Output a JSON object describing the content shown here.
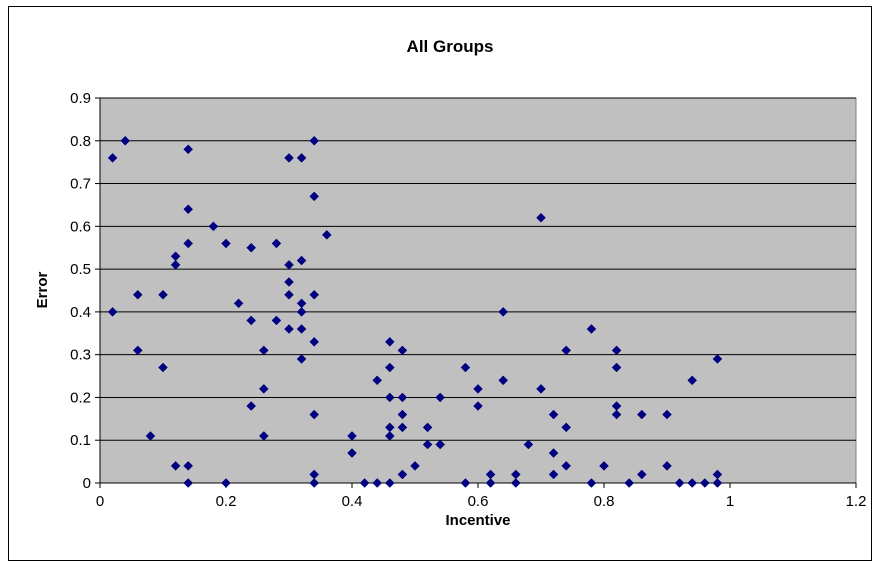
{
  "chart_data": {
    "type": "scatter",
    "title": "All Groups",
    "xlabel": "Incentive",
    "ylabel": "Error",
    "xlim": [
      0,
      1.2
    ],
    "ylim": [
      0,
      0.9
    ],
    "x_ticks": [
      "0",
      "0.2",
      "0.4",
      "0.6",
      "0.8",
      "1",
      "1.2"
    ],
    "y_ticks": [
      "0",
      "0.1",
      "0.2",
      "0.3",
      "0.4",
      "0.5",
      "0.6",
      "0.7",
      "0.8",
      "0.9"
    ],
    "grid": "horizontal",
    "legend": "none",
    "colors": {
      "marker": "#000080",
      "plot_area": "#c0c0c0",
      "gridline": "#000000"
    },
    "series": [
      {
        "points": [
          [
            0.02,
            0.76
          ],
          [
            0.04,
            0.8
          ],
          [
            0.02,
            0.4
          ],
          [
            0.06,
            0.44
          ],
          [
            0.06,
            0.31
          ],
          [
            0.08,
            0.11
          ],
          [
            0.1,
            0.44
          ],
          [
            0.1,
            0.27
          ],
          [
            0.12,
            0.53
          ],
          [
            0.12,
            0.51
          ],
          [
            0.12,
            0.04
          ],
          [
            0.14,
            0.78
          ],
          [
            0.14,
            0.64
          ],
          [
            0.14,
            0.56
          ],
          [
            0.14,
            0.04
          ],
          [
            0.14,
            0.0
          ],
          [
            0.18,
            0.6
          ],
          [
            0.2,
            0.56
          ],
          [
            0.2,
            0.0
          ],
          [
            0.22,
            0.42
          ],
          [
            0.24,
            0.55
          ],
          [
            0.24,
            0.38
          ],
          [
            0.24,
            0.18
          ],
          [
            0.26,
            0.31
          ],
          [
            0.26,
            0.22
          ],
          [
            0.26,
            0.11
          ],
          [
            0.28,
            0.56
          ],
          [
            0.28,
            0.38
          ],
          [
            0.3,
            0.76
          ],
          [
            0.3,
            0.51
          ],
          [
            0.3,
            0.47
          ],
          [
            0.3,
            0.44
          ],
          [
            0.3,
            0.36
          ],
          [
            0.32,
            0.76
          ],
          [
            0.32,
            0.52
          ],
          [
            0.32,
            0.42
          ],
          [
            0.32,
            0.4
          ],
          [
            0.32,
            0.36
          ],
          [
            0.32,
            0.29
          ],
          [
            0.34,
            0.8
          ],
          [
            0.34,
            0.67
          ],
          [
            0.34,
            0.44
          ],
          [
            0.34,
            0.33
          ],
          [
            0.34,
            0.16
          ],
          [
            0.34,
            0.02
          ],
          [
            0.34,
            0.0
          ],
          [
            0.36,
            0.58
          ],
          [
            0.4,
            0.11
          ],
          [
            0.4,
            0.07
          ],
          [
            0.42,
            0.0
          ],
          [
            0.44,
            0.24
          ],
          [
            0.44,
            0.0
          ],
          [
            0.46,
            0.33
          ],
          [
            0.46,
            0.27
          ],
          [
            0.46,
            0.2
          ],
          [
            0.46,
            0.13
          ],
          [
            0.46,
            0.11
          ],
          [
            0.46,
            0.0
          ],
          [
            0.48,
            0.31
          ],
          [
            0.48,
            0.2
          ],
          [
            0.48,
            0.16
          ],
          [
            0.48,
            0.13
          ],
          [
            0.48,
            0.02
          ],
          [
            0.5,
            0.04
          ],
          [
            0.52,
            0.13
          ],
          [
            0.52,
            0.09
          ],
          [
            0.54,
            0.2
          ],
          [
            0.54,
            0.09
          ],
          [
            0.58,
            0.27
          ],
          [
            0.58,
            0.0
          ],
          [
            0.6,
            0.22
          ],
          [
            0.6,
            0.18
          ],
          [
            0.62,
            0.02
          ],
          [
            0.62,
            0.0
          ],
          [
            0.64,
            0.4
          ],
          [
            0.64,
            0.24
          ],
          [
            0.66,
            0.02
          ],
          [
            0.66,
            0.0
          ],
          [
            0.68,
            0.09
          ],
          [
            0.7,
            0.62
          ],
          [
            0.7,
            0.22
          ],
          [
            0.72,
            0.16
          ],
          [
            0.72,
            0.07
          ],
          [
            0.72,
            0.02
          ],
          [
            0.74,
            0.31
          ],
          [
            0.74,
            0.13
          ],
          [
            0.74,
            0.04
          ],
          [
            0.78,
            0.36
          ],
          [
            0.78,
            0.0
          ],
          [
            0.8,
            0.04
          ],
          [
            0.82,
            0.31
          ],
          [
            0.82,
            0.27
          ],
          [
            0.82,
            0.18
          ],
          [
            0.82,
            0.16
          ],
          [
            0.84,
            0.0
          ],
          [
            0.86,
            0.16
          ],
          [
            0.86,
            0.02
          ],
          [
            0.9,
            0.16
          ],
          [
            0.9,
            0.04
          ],
          [
            0.92,
            0.0
          ],
          [
            0.94,
            0.24
          ],
          [
            0.94,
            0.0
          ],
          [
            0.96,
            0.0
          ],
          [
            0.98,
            0.29
          ],
          [
            0.98,
            0.02
          ],
          [
            0.98,
            0.0
          ]
        ]
      }
    ]
  }
}
